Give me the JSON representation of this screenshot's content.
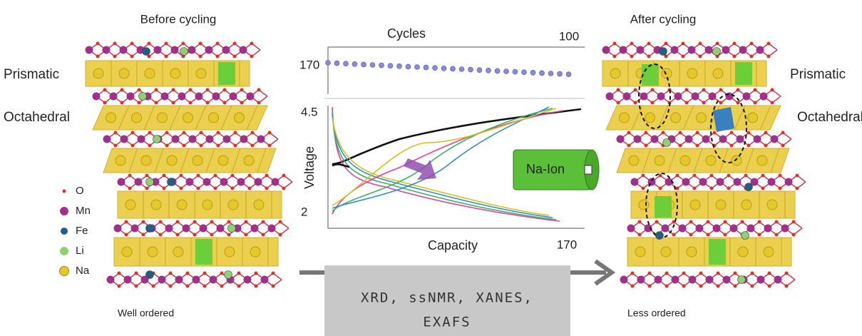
{
  "left": {
    "title": "Before cycling",
    "layers": [
      "Prismatic",
      "Octahedral"
    ],
    "caption": "Well ordered"
  },
  "legend": {
    "items": [
      "O",
      "Mn",
      "Fe",
      "Li",
      "Na"
    ]
  },
  "right": {
    "title": "After cycling",
    "layers": [
      "Prismatic",
      "Octahedral"
    ],
    "caption": "Less ordered"
  },
  "inset": {
    "top_axis_label": "Cycles",
    "top_axis_end": 100,
    "top_value": 170,
    "y_top": 4.5,
    "y_bottom": 2.0,
    "y_label": "Voltage",
    "x_label": "Capacity",
    "x_end": 170,
    "battery": "Na-Ion"
  },
  "process": {
    "lines": [
      "XRD, ssNMR, XANES,",
      "EXAFS"
    ]
  }
}
